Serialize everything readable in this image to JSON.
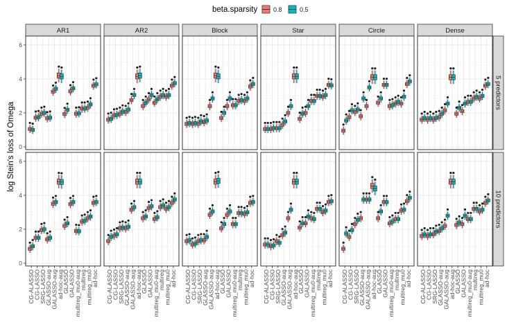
{
  "chart_data": {
    "type": "boxplot",
    "title": "",
    "xlabel": "",
    "ylabel": "log Stein's loss of Omega",
    "ylim": [
      0,
      6.2
    ],
    "yticks": [
      0,
      2,
      4,
      6
    ],
    "grid": true,
    "legend": {
      "title": "beta.sparsity",
      "position": "top",
      "entries": [
        {
          "label": "0.8",
          "color": "#F8766D"
        },
        {
          "label": "0.5",
          "color": "#00BFC4"
        }
      ]
    },
    "categories": [
      "CG-ALASSO",
      "CG-LASSO",
      "SRG-LASSO",
      "GLASSO-aug",
      "GALASSO-aug",
      "ad-hoc-aug",
      "GLASSO",
      "GALASSO",
      "multireg_mu0-aug",
      "multireg",
      "multireg_mu0",
      "ad-hoc"
    ],
    "col_facets": [
      "AR1",
      "AR2",
      "Block",
      "Star",
      "Circle",
      "Dense"
    ],
    "row_facets": [
      "5 predictors",
      "10 predictors"
    ],
    "panels": [
      {
        "row": "5 predictors",
        "col": "AR1",
        "series": [
          {
            "name": "0.8",
            "medians": [
              1.05,
              1.72,
              1.95,
              1.68,
              3.25,
              4.2,
              1.93,
              3.27,
              1.95,
              2.25,
              2.3,
              3.6
            ]
          },
          {
            "name": "0.5",
            "medians": [
              1.0,
              1.75,
              2.0,
              1.72,
              3.42,
              4.15,
              2.18,
              3.45,
              1.97,
              2.25,
              2.5,
              3.68
            ]
          }
        ]
      },
      {
        "row": "5 predictors",
        "col": "AR2",
        "series": [
          {
            "name": "0.8",
            "medians": [
              1.6,
              1.85,
              1.95,
              2.05,
              2.75,
              4.15,
              2.4,
              2.8,
              2.6,
              2.95,
              2.95,
              3.6
            ]
          },
          {
            "name": "0.5",
            "medians": [
              1.65,
              1.88,
              2.08,
              2.2,
              3.05,
              4.2,
              2.6,
              3.05,
              2.8,
              3.05,
              3.05,
              3.75
            ]
          }
        ]
      },
      {
        "row": "5 predictors",
        "col": "Block",
        "series": [
          {
            "name": "0.8",
            "medians": [
              1.35,
              1.35,
              1.35,
              1.45,
              2.4,
              4.2,
              1.7,
              2.4,
              2.45,
              2.7,
              2.7,
              3.55
            ]
          },
          {
            "name": "0.5",
            "medians": [
              1.4,
              1.4,
              1.5,
              1.55,
              2.85,
              4.15,
              2.0,
              2.85,
              2.45,
              2.75,
              2.85,
              3.7
            ]
          }
        ]
      },
      {
        "row": "5 predictors",
        "col": "Star",
        "series": [
          {
            "name": "0.8",
            "medians": [
              1.05,
              1.05,
              1.1,
              1.3,
              2.0,
              4.15,
              1.65,
              2.0,
              2.7,
              3.0,
              2.95,
              3.65
            ]
          },
          {
            "name": "0.5",
            "medians": [
              1.05,
              1.1,
              1.1,
              1.5,
              2.4,
              4.15,
              1.95,
              2.4,
              2.7,
              3.0,
              3.05,
              3.62
            ]
          }
        ]
      },
      {
        "row": "5 predictors",
        "col": "Circle",
        "series": [
          {
            "name": "0.8",
            "medians": [
              0.95,
              1.75,
              2.05,
              1.8,
              2.4,
              4.1,
              2.6,
              3.65,
              2.4,
              2.55,
              2.55,
              3.7
            ]
          },
          {
            "name": "0.5",
            "medians": [
              1.55,
              2.15,
              2.2,
              2.85,
              3.5,
              4.1,
              2.85,
              3.65,
              2.45,
              2.65,
              2.95,
              3.85
            ]
          }
        ]
      },
      {
        "row": "5 predictors",
        "col": "Dense",
        "series": [
          {
            "name": "0.8",
            "medians": [
              1.6,
              1.6,
              1.6,
              1.75,
              2.15,
              4.1,
              1.95,
              2.1,
              2.65,
              2.85,
              2.85,
              3.6
            ]
          },
          {
            "name": "0.5",
            "medians": [
              1.7,
              1.7,
              1.7,
              1.95,
              2.55,
              4.1,
              2.3,
              2.55,
              2.65,
              2.95,
              3.0,
              3.7
            ]
          }
        ]
      },
      {
        "row": "10 predictors",
        "col": "AR1",
        "series": [
          {
            "name": "0.8",
            "medians": [
              0.85,
              1.5,
              1.95,
              1.4,
              3.5,
              4.8,
              2.2,
              3.48,
              1.9,
              2.45,
              2.65,
              3.55
            ]
          },
          {
            "name": "0.5",
            "medians": [
              1.0,
              1.5,
              2.0,
              1.5,
              3.6,
              4.78,
              2.35,
              3.6,
              1.88,
              2.5,
              2.75,
              3.6
            ]
          }
        ]
      },
      {
        "row": "10 predictors",
        "col": "AR2",
        "series": [
          {
            "name": "0.8",
            "medians": [
              1.3,
              1.62,
              2.05,
              2.05,
              3.15,
              4.8,
              2.65,
              3.25,
              2.6,
              3.3,
              3.2,
              3.55
            ]
          },
          {
            "name": "0.5",
            "medians": [
              1.55,
              1.7,
              2.1,
              2.15,
              3.3,
              4.8,
              2.75,
              3.35,
              2.7,
              3.4,
              3.3,
              3.75
            ]
          }
        ]
      },
      {
        "row": "10 predictors",
        "col": "Block",
        "series": [
          {
            "name": "0.8",
            "medians": [
              1.3,
              1.1,
              1.3,
              1.35,
              2.85,
              4.8,
              2.05,
              2.85,
              2.3,
              2.95,
              2.9,
              3.55
            ]
          },
          {
            "name": "0.5",
            "medians": [
              1.35,
              1.15,
              1.35,
              1.55,
              3.05,
              4.85,
              2.3,
              3.05,
              2.3,
              2.95,
              3.0,
              3.6
            ]
          }
        ]
      },
      {
        "row": "10 predictors",
        "col": "Star",
        "series": [
          {
            "name": "0.8",
            "medians": [
              1.1,
              1.0,
              1.3,
              1.65,
              2.65,
              4.8,
              2.1,
              2.35,
              2.65,
              3.2,
              3.0,
              3.6
            ]
          },
          {
            "name": "0.5",
            "medians": [
              1.1,
              1.05,
              1.2,
              1.8,
              3.15,
              4.8,
              2.35,
              2.75,
              2.6,
              3.2,
              3.1,
              3.65
            ]
          }
        ]
      },
      {
        "row": "10 predictors",
        "col": "Circle",
        "series": [
          {
            "name": "0.8",
            "medians": [
              0.85,
              1.55,
              2.3,
              2.65,
              3.75,
              4.55,
              2.65,
              3.6,
              2.35,
              2.6,
              3.1,
              3.65
            ]
          },
          {
            "name": "0.5",
            "medians": [
              1.75,
              1.95,
              2.55,
              3.75,
              3.75,
              4.4,
              3.05,
              3.6,
              2.45,
              2.6,
              3.15,
              3.85
            ]
          }
        ]
      },
      {
        "row": "10 predictors",
        "col": "Dense",
        "series": [
          {
            "name": "0.8",
            "medians": [
              1.6,
              1.6,
              1.7,
              1.9,
              2.2,
              4.8,
              2.25,
              2.3,
              2.6,
              3.2,
              3.05,
              3.55
            ]
          },
          {
            "name": "0.5",
            "medians": [
              1.7,
              1.7,
              1.85,
              2.05,
              2.8,
              4.8,
              2.4,
              2.8,
              2.6,
              3.2,
              3.15,
              3.7
            ]
          }
        ]
      }
    ]
  }
}
